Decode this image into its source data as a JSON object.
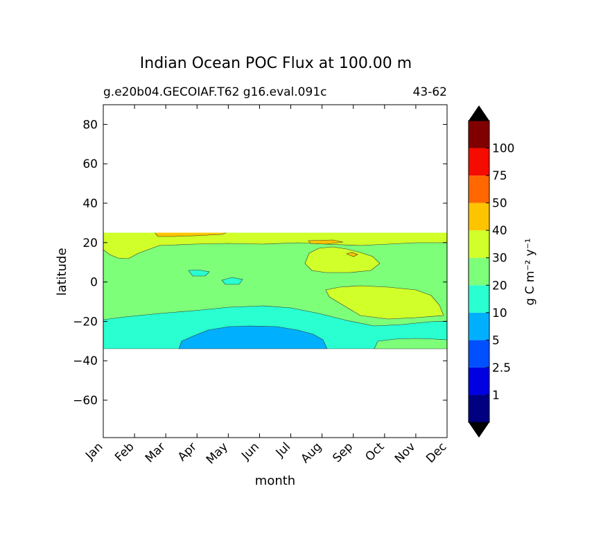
{
  "chart_data": {
    "type": "contourf",
    "title": "Indian Ocean POC Flux at 100.00 m",
    "subtitle_left": "g.e20b04.GECOIAF.T62 g16.eval.091c",
    "subtitle_right": "43-62",
    "xlabel": "month",
    "ylabel": "latitude",
    "x_categories": [
      "Jan",
      "Feb",
      "Mar",
      "Apr",
      "May",
      "Jun",
      "Jul",
      "Aug",
      "Sep",
      "Oct",
      "Nov",
      "Dec"
    ],
    "ylim": [
      -79,
      90
    ],
    "y_ticks": [
      80,
      60,
      40,
      20,
      0,
      -20,
      -40,
      -60
    ],
    "y_tick_labels": [
      "80",
      "60",
      "40",
      "20",
      "0",
      "−20",
      "−40",
      "−60"
    ],
    "data_extent_lat": [
      -34,
      25
    ],
    "colorbar": {
      "label": "g C m⁻² y⁻¹",
      "levels": [
        "1",
        "2.5",
        "5",
        "10",
        "20",
        "30",
        "40",
        "50",
        "75",
        "100"
      ],
      "colors": [
        "#000080",
        "#0000e0",
        "#0050ff",
        "#00b0ff",
        "#29ffd0",
        "#7dff7a",
        "#d0ff29",
        "#ffc400",
        "#ff6800",
        "#f50b00",
        "#800000"
      ],
      "under_color": "#000000",
      "over_color": "#000000"
    },
    "regions": [
      {
        "band": "10-20",
        "where": "south of about -20 latitude, all months"
      },
      {
        "band": "5-10",
        "where": "about -22 to -34 latitude, Apr to Aug"
      },
      {
        "band": "20-30",
        "where": "about -20 to 20 latitude, all months"
      },
      {
        "band": "30-40",
        "where": "about 12 to 25 latitude, all months"
      },
      {
        "band": "30-40",
        "where": "about -18 to -2 latitude, Aug to Dec"
      },
      {
        "band": "40-50",
        "where": "about 22 to 25 latitude, Mar to Apr"
      }
    ]
  }
}
